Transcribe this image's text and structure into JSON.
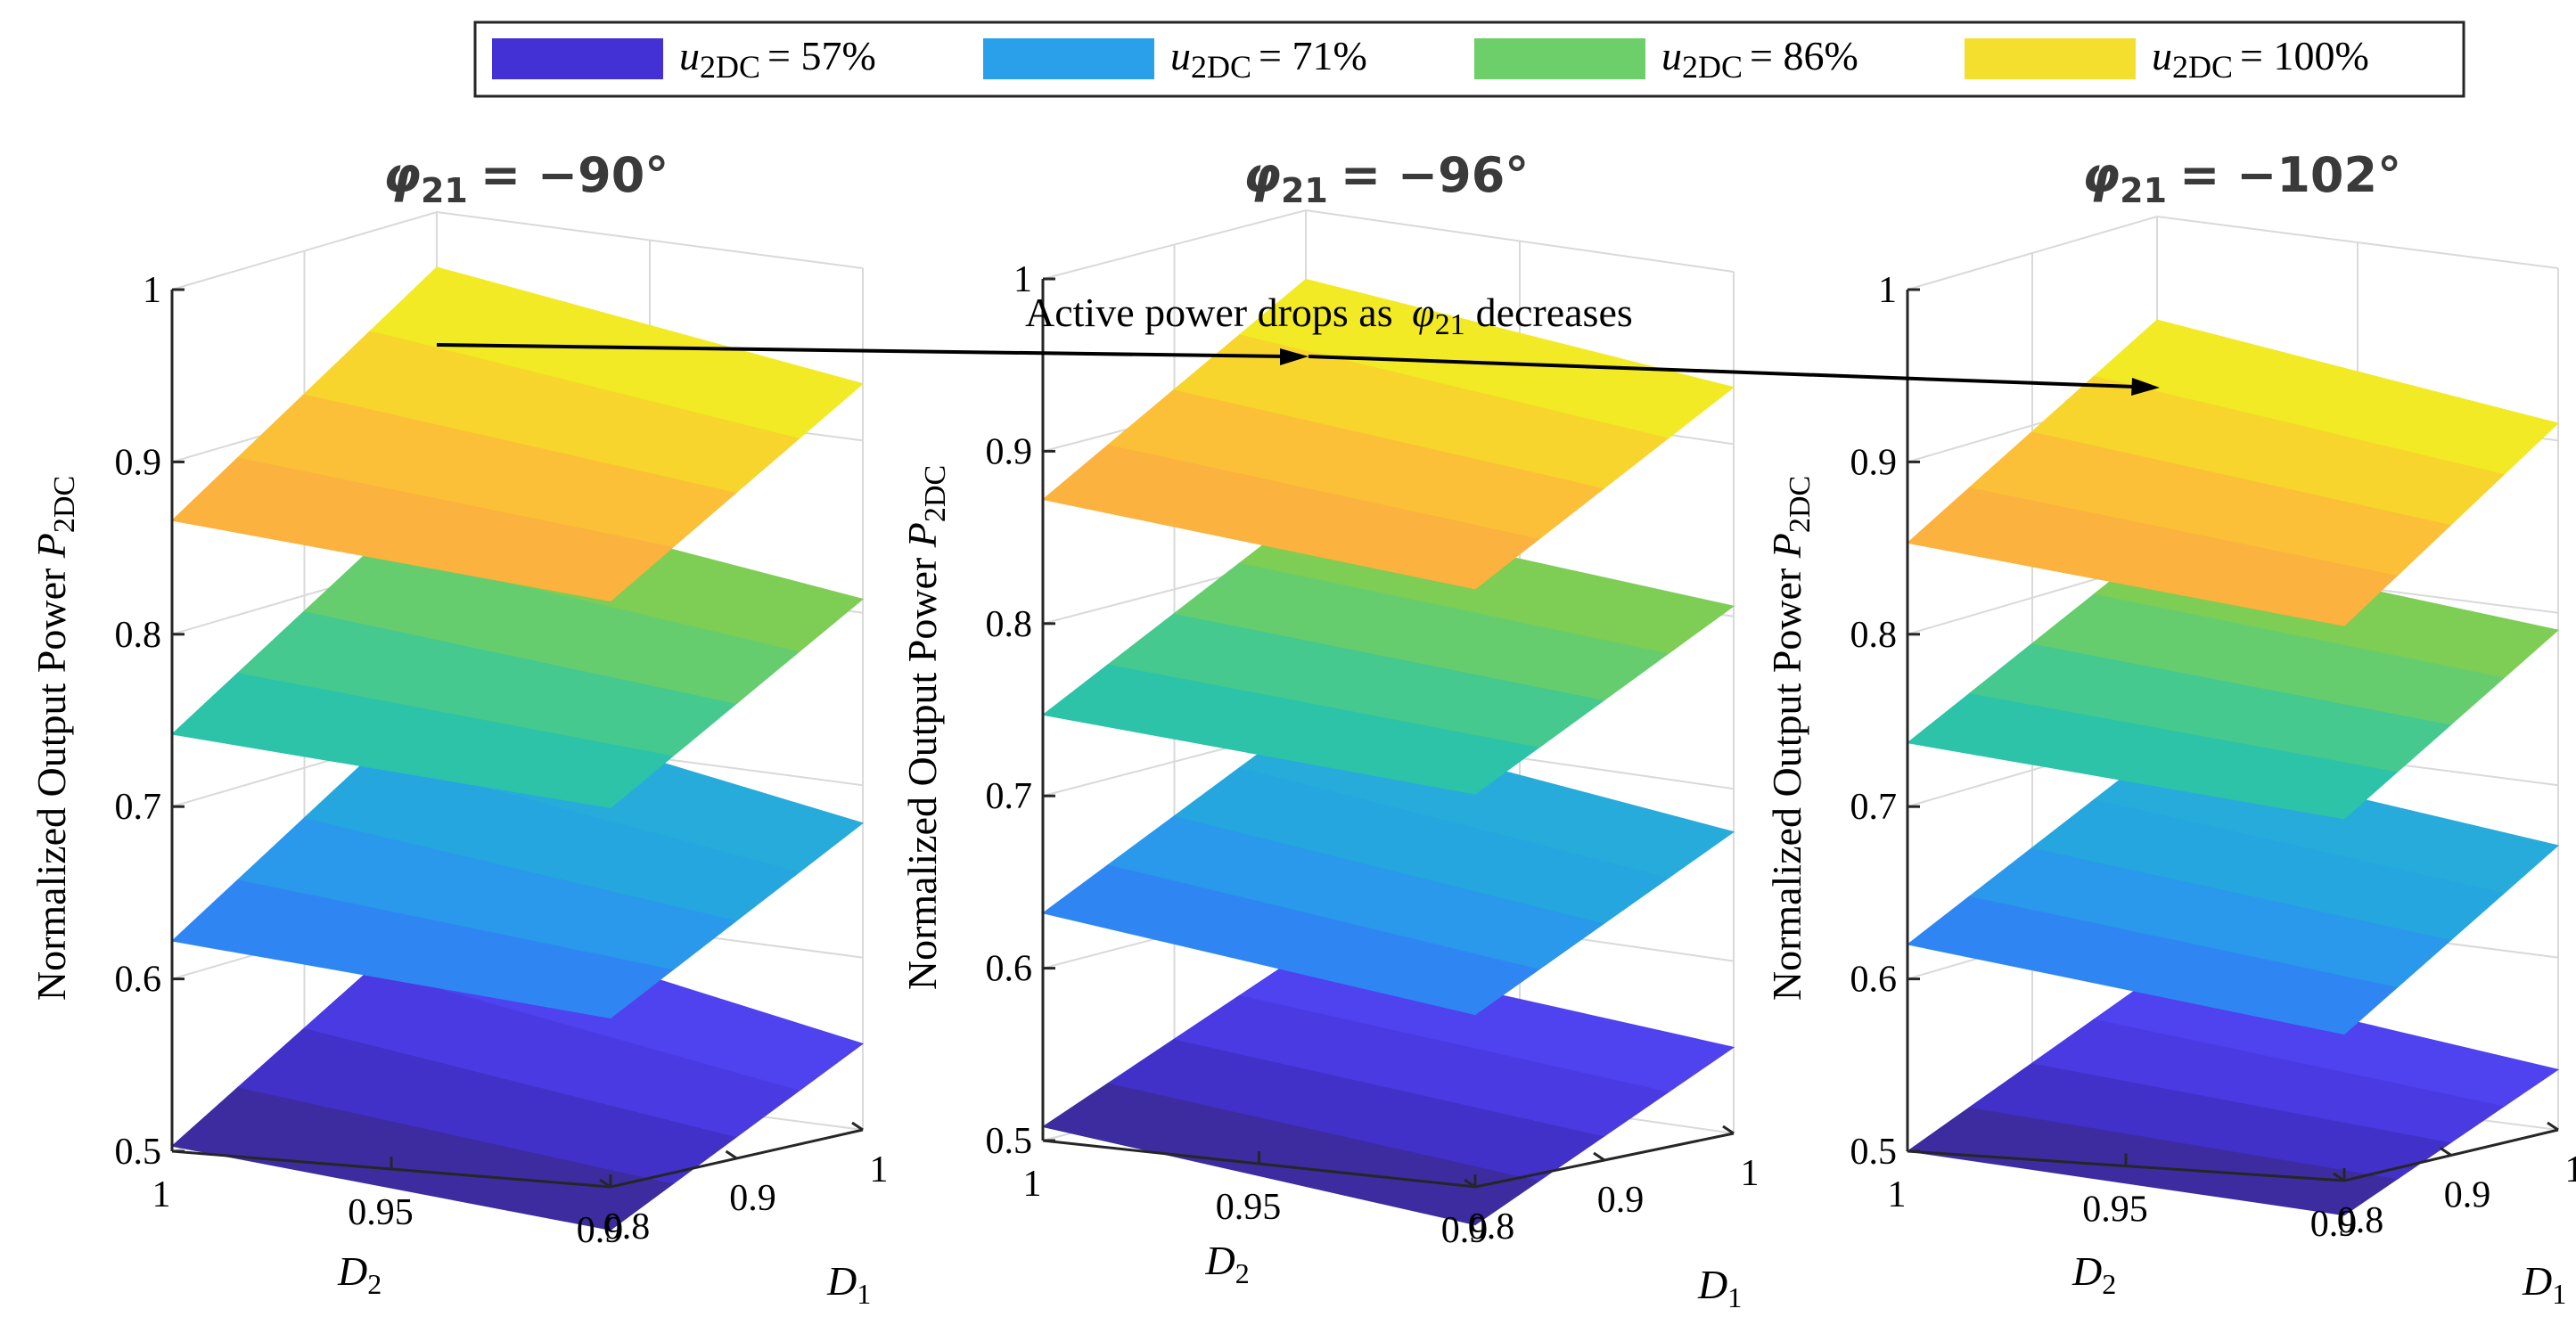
{
  "chart_data": {
    "type": "surface3d",
    "legend": {
      "placement": "top-center",
      "entries": [
        {
          "var": "u",
          "sub": "2DC",
          "value": "= 57%",
          "color": "#4331d6"
        },
        {
          "var": "u",
          "sub": "2DC",
          "value": "= 71%",
          "color": "#2aa0ea"
        },
        {
          "var": "u",
          "sub": "2DC",
          "value": "= 86%",
          "color": "#6ccf6a"
        },
        {
          "var": "u",
          "sub": "2DC",
          "value": "= 100%",
          "color": "#f5df2e"
        }
      ]
    },
    "annotation": {
      "text": "Active power drops as",
      "var": "φ",
      "sub": "21",
      "suffix": "decreases"
    },
    "zlabel": {
      "text": "Normalized Output Power",
      "var": "P",
      "sub": "2DC"
    },
    "xlabel": {
      "var": "D",
      "sub": "2"
    },
    "ylabel": {
      "var": "D",
      "sub": "1"
    },
    "x_range": [
      0.9,
      1
    ],
    "y_range": [
      0.8,
      1
    ],
    "zlim": [
      0.5,
      1
    ],
    "z_ticks": [
      "0.5",
      "0.6",
      "0.7",
      "0.8",
      "0.9",
      "1"
    ],
    "x_ticks": [
      "1",
      "0.95",
      "0.9"
    ],
    "y_ticks": [
      "0.8",
      "0.9",
      "1"
    ],
    "grid": true,
    "panels": [
      {
        "title_var": "φ",
        "title_sub": "21",
        "title_value": "= −90°",
        "surfaces": [
          {
            "series": "u2DC = 57%",
            "corners": {
              "front_left": 0.503,
              "front_right": 0.475,
              "back_right": 0.55,
              "back_left": 0.595
            },
            "colors": [
              "#3c2ca0",
              "#4231c8",
              "#4a3ae2",
              "#4f42ef"
            ]
          },
          {
            "series": "u2DC = 71%",
            "corners": {
              "front_left": 0.622,
              "front_right": 0.598,
              "back_right": 0.678,
              "back_left": 0.72
            },
            "colors": [
              "#2f86f3",
              "#2a98eb",
              "#25a6df",
              "#27abdb"
            ]
          },
          {
            "series": "u2DC = 86%",
            "corners": {
              "front_left": 0.742,
              "front_right": 0.72,
              "back_right": 0.808,
              "back_left": 0.84
            },
            "colors": [
              "#2cc3a8",
              "#45c98f",
              "#66cd6e",
              "#7ecd55"
            ]
          },
          {
            "series": "u2DC = 100%",
            "corners": {
              "front_left": 0.866,
              "front_right": 0.84,
              "back_right": 0.933,
              "back_left": 0.968
            },
            "colors": [
              "#fbb23e",
              "#fbc038",
              "#f8d52c",
              "#f2ea24"
            ]
          }
        ]
      },
      {
        "title_var": "φ",
        "title_sub": "21",
        "title_value": "= −96°",
        "surfaces": [
          {
            "series": "u2DC = 57%",
            "corners": {
              "front_left": 0.508,
              "front_right": 0.478,
              "back_right": 0.55,
              "back_left": 0.57
            },
            "colors": [
              "#3c2ca0",
              "#4231c8",
              "#4a3ae2",
              "#4f42ef"
            ]
          },
          {
            "series": "u2DC = 71%",
            "corners": {
              "front_left": 0.632,
              "front_right": 0.6,
              "back_right": 0.675,
              "back_left": 0.705
            },
            "colors": [
              "#2f86f3",
              "#2a98eb",
              "#25a6df",
              "#27abdb"
            ]
          },
          {
            "series": "u2DC = 86%",
            "corners": {
              "front_left": 0.747,
              "front_right": 0.728,
              "back_right": 0.806,
              "back_left": 0.825
            },
            "colors": [
              "#2cc3a8",
              "#45c98f",
              "#66cd6e",
              "#7ecd55"
            ]
          },
          {
            "series": "u2DC = 100%",
            "corners": {
              "front_left": 0.872,
              "front_right": 0.847,
              "back_right": 0.933,
              "back_left": 0.96
            },
            "colors": [
              "#fbb23e",
              "#fbc038",
              "#f8d52c",
              "#f2ea24"
            ]
          }
        ]
      },
      {
        "title_var": "φ",
        "title_sub": "21",
        "title_value": "= −102°",
        "surfaces": [
          {
            "series": "u2DC = 57%",
            "corners": {
              "front_left": 0.5,
              "front_right": 0.48,
              "back_right": 0.535,
              "back_left": 0.56
            },
            "colors": [
              "#3c2ca0",
              "#4231c8",
              "#4a3ae2",
              "#4f42ef"
            ]
          },
          {
            "series": "u2DC = 71%",
            "corners": {
              "front_left": 0.62,
              "front_right": 0.585,
              "back_right": 0.665,
              "back_left": 0.69
            },
            "colors": [
              "#2f86f3",
              "#2a98eb",
              "#25a6df",
              "#27abdb"
            ]
          },
          {
            "series": "u2DC = 86%",
            "corners": {
              "front_left": 0.737,
              "front_right": 0.71,
              "back_right": 0.79,
              "back_left": 0.81
            },
            "colors": [
              "#2cc3a8",
              "#45c98f",
              "#66cd6e",
              "#7ecd55"
            ]
          },
          {
            "series": "u2DC = 100%",
            "corners": {
              "front_left": 0.853,
              "front_right": 0.822,
              "back_right": 0.91,
              "back_left": 0.94
            },
            "colors": [
              "#fbb23e",
              "#fbc038",
              "#f8d52c",
              "#f2ea24"
            ]
          }
        ]
      }
    ]
  }
}
